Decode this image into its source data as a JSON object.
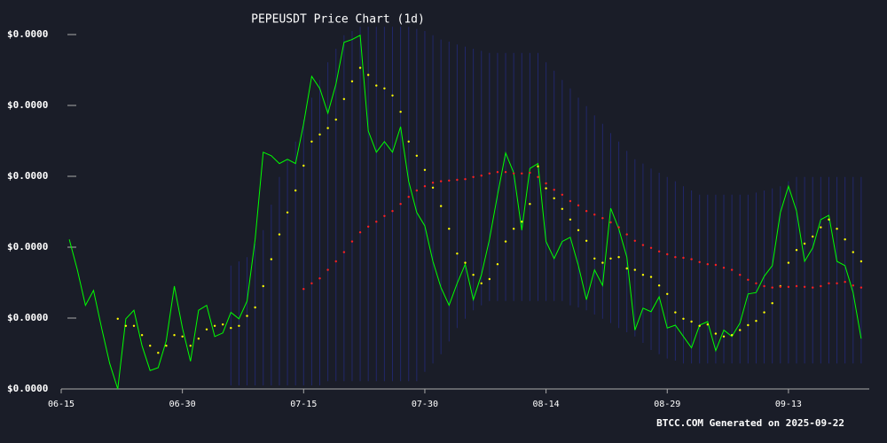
{
  "chart_data": {
    "type": "line",
    "title": "PEPEUSDT Price Chart (1d)",
    "footer": "BTCC.COM Generated on 2025-09-22",
    "x": [
      "06-16",
      "06-17",
      "06-18",
      "06-19",
      "06-20",
      "06-21",
      "06-22",
      "06-23",
      "06-24",
      "06-25",
      "06-26",
      "06-27",
      "06-28",
      "06-29",
      "06-30",
      "07-01",
      "07-02",
      "07-03",
      "07-04",
      "07-05",
      "07-06",
      "07-07",
      "07-08",
      "07-09",
      "07-10",
      "07-11",
      "07-12",
      "07-13",
      "07-14",
      "07-15",
      "07-16",
      "07-17",
      "07-18",
      "07-19",
      "07-20",
      "07-21",
      "07-22",
      "07-23",
      "07-24",
      "07-25",
      "07-26",
      "07-27",
      "07-28",
      "07-29",
      "07-30",
      "07-31",
      "08-01",
      "08-02",
      "08-03",
      "08-04",
      "08-05",
      "08-06",
      "08-07",
      "08-08",
      "08-09",
      "08-10",
      "08-11",
      "08-12",
      "08-13",
      "08-14",
      "08-15",
      "08-16",
      "08-17",
      "08-18",
      "08-19",
      "08-20",
      "08-21",
      "08-22",
      "08-23",
      "08-24",
      "08-25",
      "08-26",
      "08-27",
      "08-28",
      "08-29",
      "08-30",
      "08-31",
      "09-01",
      "09-02",
      "09-03",
      "09-04",
      "09-05",
      "09-06",
      "09-07",
      "09-08",
      "09-09",
      "09-10",
      "09-11",
      "09-12",
      "09-13",
      "09-14",
      "09-15",
      "09-16",
      "09-17",
      "09-18",
      "09-19",
      "09-20",
      "09-21",
      "09-22"
    ],
    "xlim": [
      "06-15",
      "09-23"
    ],
    "xticks": [
      "06-15",
      "06-30",
      "07-15",
      "07-30",
      "08-14",
      "08-29",
      "09-13"
    ],
    "ylim": [
      8e-06,
      1.3e-05
    ],
    "yticks": [
      {
        "value": 8e-06,
        "label": "$0.0000"
      },
      {
        "value": 9e-06,
        "label": "$0.0000"
      },
      {
        "value": 1e-05,
        "label": "$0.0000"
      },
      {
        "value": 1.1e-05,
        "label": "$0.0000"
      },
      {
        "value": 1.2e-05,
        "label": "$0.0000"
      },
      {
        "value": 1.3e-05,
        "label": "$0.0000"
      }
    ],
    "band": {
      "color": "#232a7a",
      "upper": [
        null,
        null,
        null,
        null,
        null,
        null,
        null,
        null,
        null,
        null,
        null,
        null,
        null,
        null,
        null,
        null,
        null,
        null,
        null,
        null,
        9.74e-06,
        9.8e-06,
        9.86e-06,
        1.005e-05,
        1.024e-05,
        1.06e-05,
        1.099e-05,
        1.124e-05,
        1.149e-05,
        1.18e-05,
        1.211e-05,
        1.236e-05,
        1.261e-05,
        1.28e-05,
        1.299e-05,
        1.305e-05,
        1.311e-05,
        1.311e-05,
        1.311e-05,
        1.311e-05,
        1.311e-05,
        1.311e-05,
        1.311e-05,
        1.308e-05,
        1.305e-05,
        1.299e-05,
        1.293e-05,
        1.29e-05,
        1.286e-05,
        1.283e-05,
        1.28e-05,
        1.277e-05,
        1.274e-05,
        1.274e-05,
        1.274e-05,
        1.274e-05,
        1.274e-05,
        1.274e-05,
        1.274e-05,
        1.261e-05,
        1.249e-05,
        1.236e-05,
        1.224e-05,
        1.211e-05,
        1.199e-05,
        1.186e-05,
        1.174e-05,
        1.161e-05,
        1.149e-05,
        1.136e-05,
        1.124e-05,
        1.118e-05,
        1.111e-05,
        1.105e-05,
        1.099e-05,
        1.093e-05,
        1.086e-05,
        1.08e-05,
        1.074e-05,
        1.074e-05,
        1.074e-05,
        1.074e-05,
        1.074e-05,
        1.074e-05,
        1.074e-05,
        1.077e-05,
        1.08e-05,
        1.083e-05,
        1.086e-05,
        1.093e-05,
        1.099e-05,
        1.099e-05,
        1.099e-05,
        1.099e-05,
        1.099e-05,
        1.099e-05,
        1.099e-05,
        1.099e-05,
        1.099e-05
      ],
      "lower": [
        null,
        null,
        null,
        null,
        null,
        null,
        null,
        null,
        null,
        null,
        null,
        null,
        null,
        null,
        null,
        null,
        null,
        null,
        null,
        null,
        8.05e-06,
        8.05e-06,
        8.05e-06,
        8.05e-06,
        8.05e-06,
        8.05e-06,
        8.05e-06,
        8.05e-06,
        8.05e-06,
        8.05e-06,
        8.05e-06,
        8.05e-06,
        8.11e-06,
        8.11e-06,
        8.11e-06,
        8.11e-06,
        8.11e-06,
        8.11e-06,
        8.11e-06,
        8.11e-06,
        8.11e-06,
        8.11e-06,
        8.11e-06,
        8.11e-06,
        8.24e-06,
        8.36e-06,
        8.49e-06,
        8.67e-06,
        8.86e-06,
        8.99e-06,
        9.11e-06,
        9.18e-06,
        9.24e-06,
        9.24e-06,
        9.24e-06,
        9.24e-06,
        9.24e-06,
        9.24e-06,
        9.24e-06,
        9.24e-06,
        9.24e-06,
        9.24e-06,
        9.18e-06,
        9.15e-06,
        9.11e-06,
        9.05e-06,
        8.99e-06,
        8.93e-06,
        8.86e-06,
        8.8e-06,
        8.74e-06,
        8.65e-06,
        8.55e-06,
        8.49e-06,
        8.43e-06,
        8.4e-06,
        8.36e-06,
        8.36e-06,
        8.36e-06,
        8.36e-06,
        8.36e-06,
        8.36e-06,
        8.36e-06,
        8.36e-06,
        8.36e-06,
        8.36e-06,
        8.36e-06,
        8.36e-06,
        8.36e-06,
        8.36e-06,
        8.36e-06,
        8.36e-06,
        8.36e-06,
        8.36e-06,
        8.36e-06,
        8.36e-06,
        8.36e-06,
        8.36e-06,
        8.36e-06
      ]
    },
    "series": [
      {
        "color": "#00ff00",
        "style": "line",
        "values": [
          1.011e-05,
          9.68e-06,
          9.18e-06,
          9.39e-06,
          8.86e-06,
          8.36e-06,
          8e-06,
          8.99e-06,
          9.11e-06,
          8.61e-06,
          8.26e-06,
          8.3e-06,
          8.68e-06,
          9.45e-06,
          8.86e-06,
          8.39e-06,
          9.11e-06,
          9.18e-06,
          8.74e-06,
          8.79e-06,
          9.08e-06,
          8.99e-06,
          9.24e-06,
          1.011e-05,
          1.134e-05,
          1.129e-05,
          1.118e-05,
          1.124e-05,
          1.118e-05,
          1.174e-05,
          1.241e-05,
          1.224e-05,
          1.189e-05,
          1.23e-05,
          1.289e-05,
          1.293e-05,
          1.299e-05,
          1.164e-05,
          1.134e-05,
          1.149e-05,
          1.134e-05,
          1.17e-05,
          1.093e-05,
          1.049e-05,
          1.03e-05,
          9.8e-06,
          9.43e-06,
          9.18e-06,
          9.49e-06,
          9.76e-06,
          9.26e-06,
          9.61e-06,
          1.011e-05,
          1.074e-05,
          1.133e-05,
          1.105e-05,
          1.024e-05,
          1.111e-05,
          1.118e-05,
          1.008e-05,
          9.84e-06,
          1.008e-05,
          1.014e-05,
          9.74e-06,
          9.26e-06,
          9.68e-06,
          9.46e-06,
          1.055e-05,
          1.026e-05,
          9.86e-06,
          8.83e-06,
          9.14e-06,
          9.09e-06,
          9.3e-06,
          8.86e-06,
          8.9e-06,
          8.74e-06,
          8.58e-06,
          8.9e-06,
          8.95e-06,
          8.54e-06,
          8.83e-06,
          8.74e-06,
          8.93e-06,
          9.34e-06,
          9.36e-06,
          9.59e-06,
          9.74e-06,
          1.049e-05,
          1.086e-05,
          1.051e-05,
          9.8e-06,
          9.99e-06,
          1.039e-05,
          1.045e-05,
          9.8e-06,
          9.74e-06,
          9.36e-06,
          8.71e-06
        ]
      },
      {
        "color": "#ffff00",
        "style": "dots",
        "values": [
          null,
          null,
          null,
          null,
          null,
          null,
          8.99e-06,
          8.89e-06,
          8.89e-06,
          8.76e-06,
          8.61e-06,
          8.51e-06,
          8.61e-06,
          8.76e-06,
          8.74e-06,
          8.61e-06,
          8.71e-06,
          8.84e-06,
          8.89e-06,
          8.91e-06,
          8.86e-06,
          8.89e-06,
          9.03e-06,
          9.15e-06,
          9.45e-06,
          9.83e-06,
          1.018e-05,
          1.049e-05,
          1.08e-05,
          1.115e-05,
          1.149e-05,
          1.159e-05,
          1.168e-05,
          1.18e-05,
          1.209e-05,
          1.234e-05,
          1.253e-05,
          1.243e-05,
          1.228e-05,
          1.224e-05,
          1.214e-05,
          1.191e-05,
          1.149e-05,
          1.129e-05,
          1.109e-05,
          1.084e-05,
          1.058e-05,
          1.026e-05,
          9.91e-06,
          9.78e-06,
          9.61e-06,
          9.49e-06,
          9.55e-06,
          9.76e-06,
          1.008e-05,
          1.026e-05,
          1.036e-05,
          1.061e-05,
          1.114e-05,
          1.083e-05,
          1.069e-05,
          1.054e-05,
          1.039e-05,
          1.024e-05,
          1.009e-05,
          9.84e-06,
          9.78e-06,
          9.84e-06,
          9.86e-06,
          9.7e-06,
          9.68e-06,
          9.61e-06,
          9.58e-06,
          9.46e-06,
          9.34e-06,
          9.08e-06,
          8.99e-06,
          8.95e-06,
          8.89e-06,
          8.91e-06,
          8.78e-06,
          8.74e-06,
          8.76e-06,
          8.83e-06,
          8.9e-06,
          8.96e-06,
          9.08e-06,
          9.21e-06,
          9.45e-06,
          9.78e-06,
          9.96e-06,
          1.005e-05,
          1.015e-05,
          1.028e-05,
          1.039e-05,
          1.026e-05,
          1.011e-05,
          9.93e-06,
          9.8e-06
        ]
      },
      {
        "color": "#ff2020",
        "style": "dots",
        "values": [
          null,
          null,
          null,
          null,
          null,
          null,
          null,
          null,
          null,
          null,
          null,
          null,
          null,
          null,
          null,
          null,
          null,
          null,
          null,
          null,
          null,
          null,
          null,
          null,
          null,
          null,
          null,
          null,
          null,
          9.41e-06,
          9.49e-06,
          9.56e-06,
          9.68e-06,
          9.8e-06,
          9.93e-06,
          1.008e-05,
          1.021e-05,
          1.029e-05,
          1.036e-05,
          1.044e-05,
          1.051e-05,
          1.061e-05,
          1.071e-05,
          1.08e-05,
          1.086e-05,
          1.091e-05,
          1.093e-05,
          1.094e-05,
          1.095e-05,
          1.096e-05,
          1.099e-05,
          1.101e-05,
          1.104e-05,
          1.106e-05,
          1.106e-05,
          1.104e-05,
          1.104e-05,
          1.105e-05,
          1.099e-05,
          1.09e-05,
          1.081e-05,
          1.074e-05,
          1.065e-05,
          1.059e-05,
          1.051e-05,
          1.046e-05,
          1.041e-05,
          1.035e-05,
          1.028e-05,
          1.018e-05,
          1.009e-05,
          1.003e-05,
          9.99e-06,
          9.94e-06,
          9.9e-06,
          9.86e-06,
          9.85e-06,
          9.83e-06,
          9.79e-06,
          9.76e-06,
          9.75e-06,
          9.71e-06,
          9.68e-06,
          9.61e-06,
          9.54e-06,
          9.49e-06,
          9.45e-06,
          9.43e-06,
          9.44e-06,
          9.44e-06,
          9.45e-06,
          9.44e-06,
          9.43e-06,
          9.45e-06,
          9.49e-06,
          9.49e-06,
          9.51e-06,
          9.46e-06,
          9.43e-06
        ]
      }
    ]
  }
}
